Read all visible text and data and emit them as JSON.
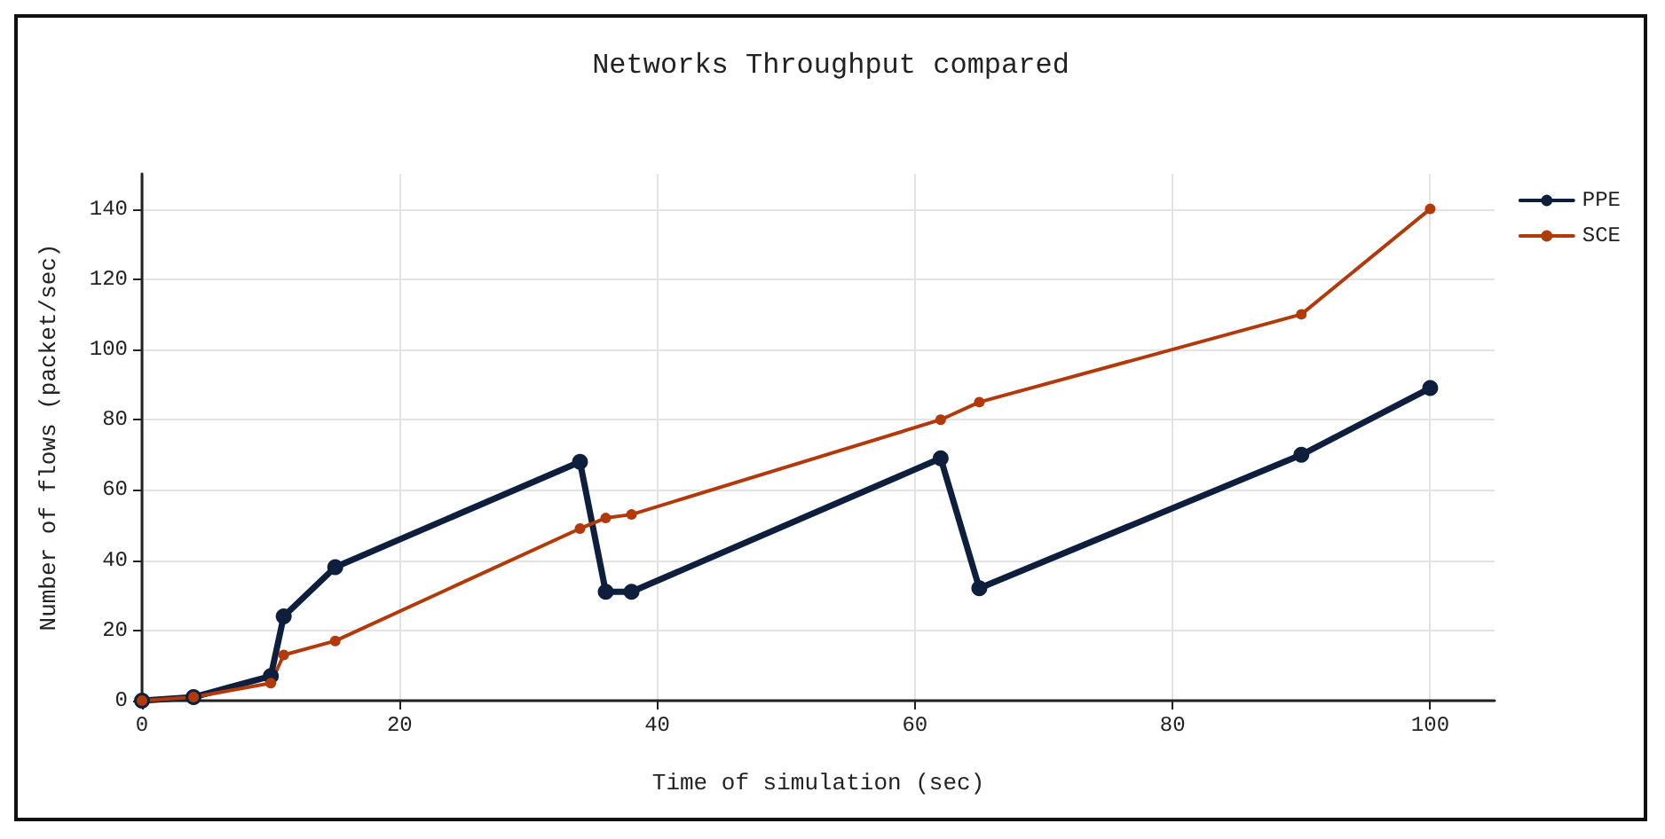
{
  "chart_data": {
    "type": "line",
    "title": "Networks Throughput compared",
    "xlabel": "Time of simulation (sec)",
    "ylabel": "Number of flows (packet/sec)",
    "xlim": [
      0,
      105
    ],
    "xticks": [
      0,
      20,
      40,
      60,
      80,
      100
    ],
    "ylim": [
      0,
      150
    ],
    "yticks": [
      0,
      20,
      40,
      60,
      80,
      100,
      120,
      140
    ],
    "grid": true,
    "legend": "top right",
    "marker": "circle",
    "line_style": "solid",
    "series": [
      {
        "name": "PPE",
        "color": "#0d1f3c",
        "x": [
          0,
          4,
          10,
          11,
          15,
          34,
          36,
          38,
          62,
          65,
          90,
          100
        ],
        "values": [
          0,
          1,
          7,
          24,
          38,
          68,
          31,
          31,
          69,
          32,
          70,
          89
        ]
      },
      {
        "name": "SCE",
        "color": "#b23a0a",
        "x": [
          0,
          4,
          10,
          11,
          15,
          34,
          36,
          38,
          62,
          65,
          90,
          100
        ],
        "values": [
          0,
          1,
          5,
          13,
          17,
          49,
          52,
          53,
          80,
          85,
          110,
          140
        ]
      }
    ]
  }
}
